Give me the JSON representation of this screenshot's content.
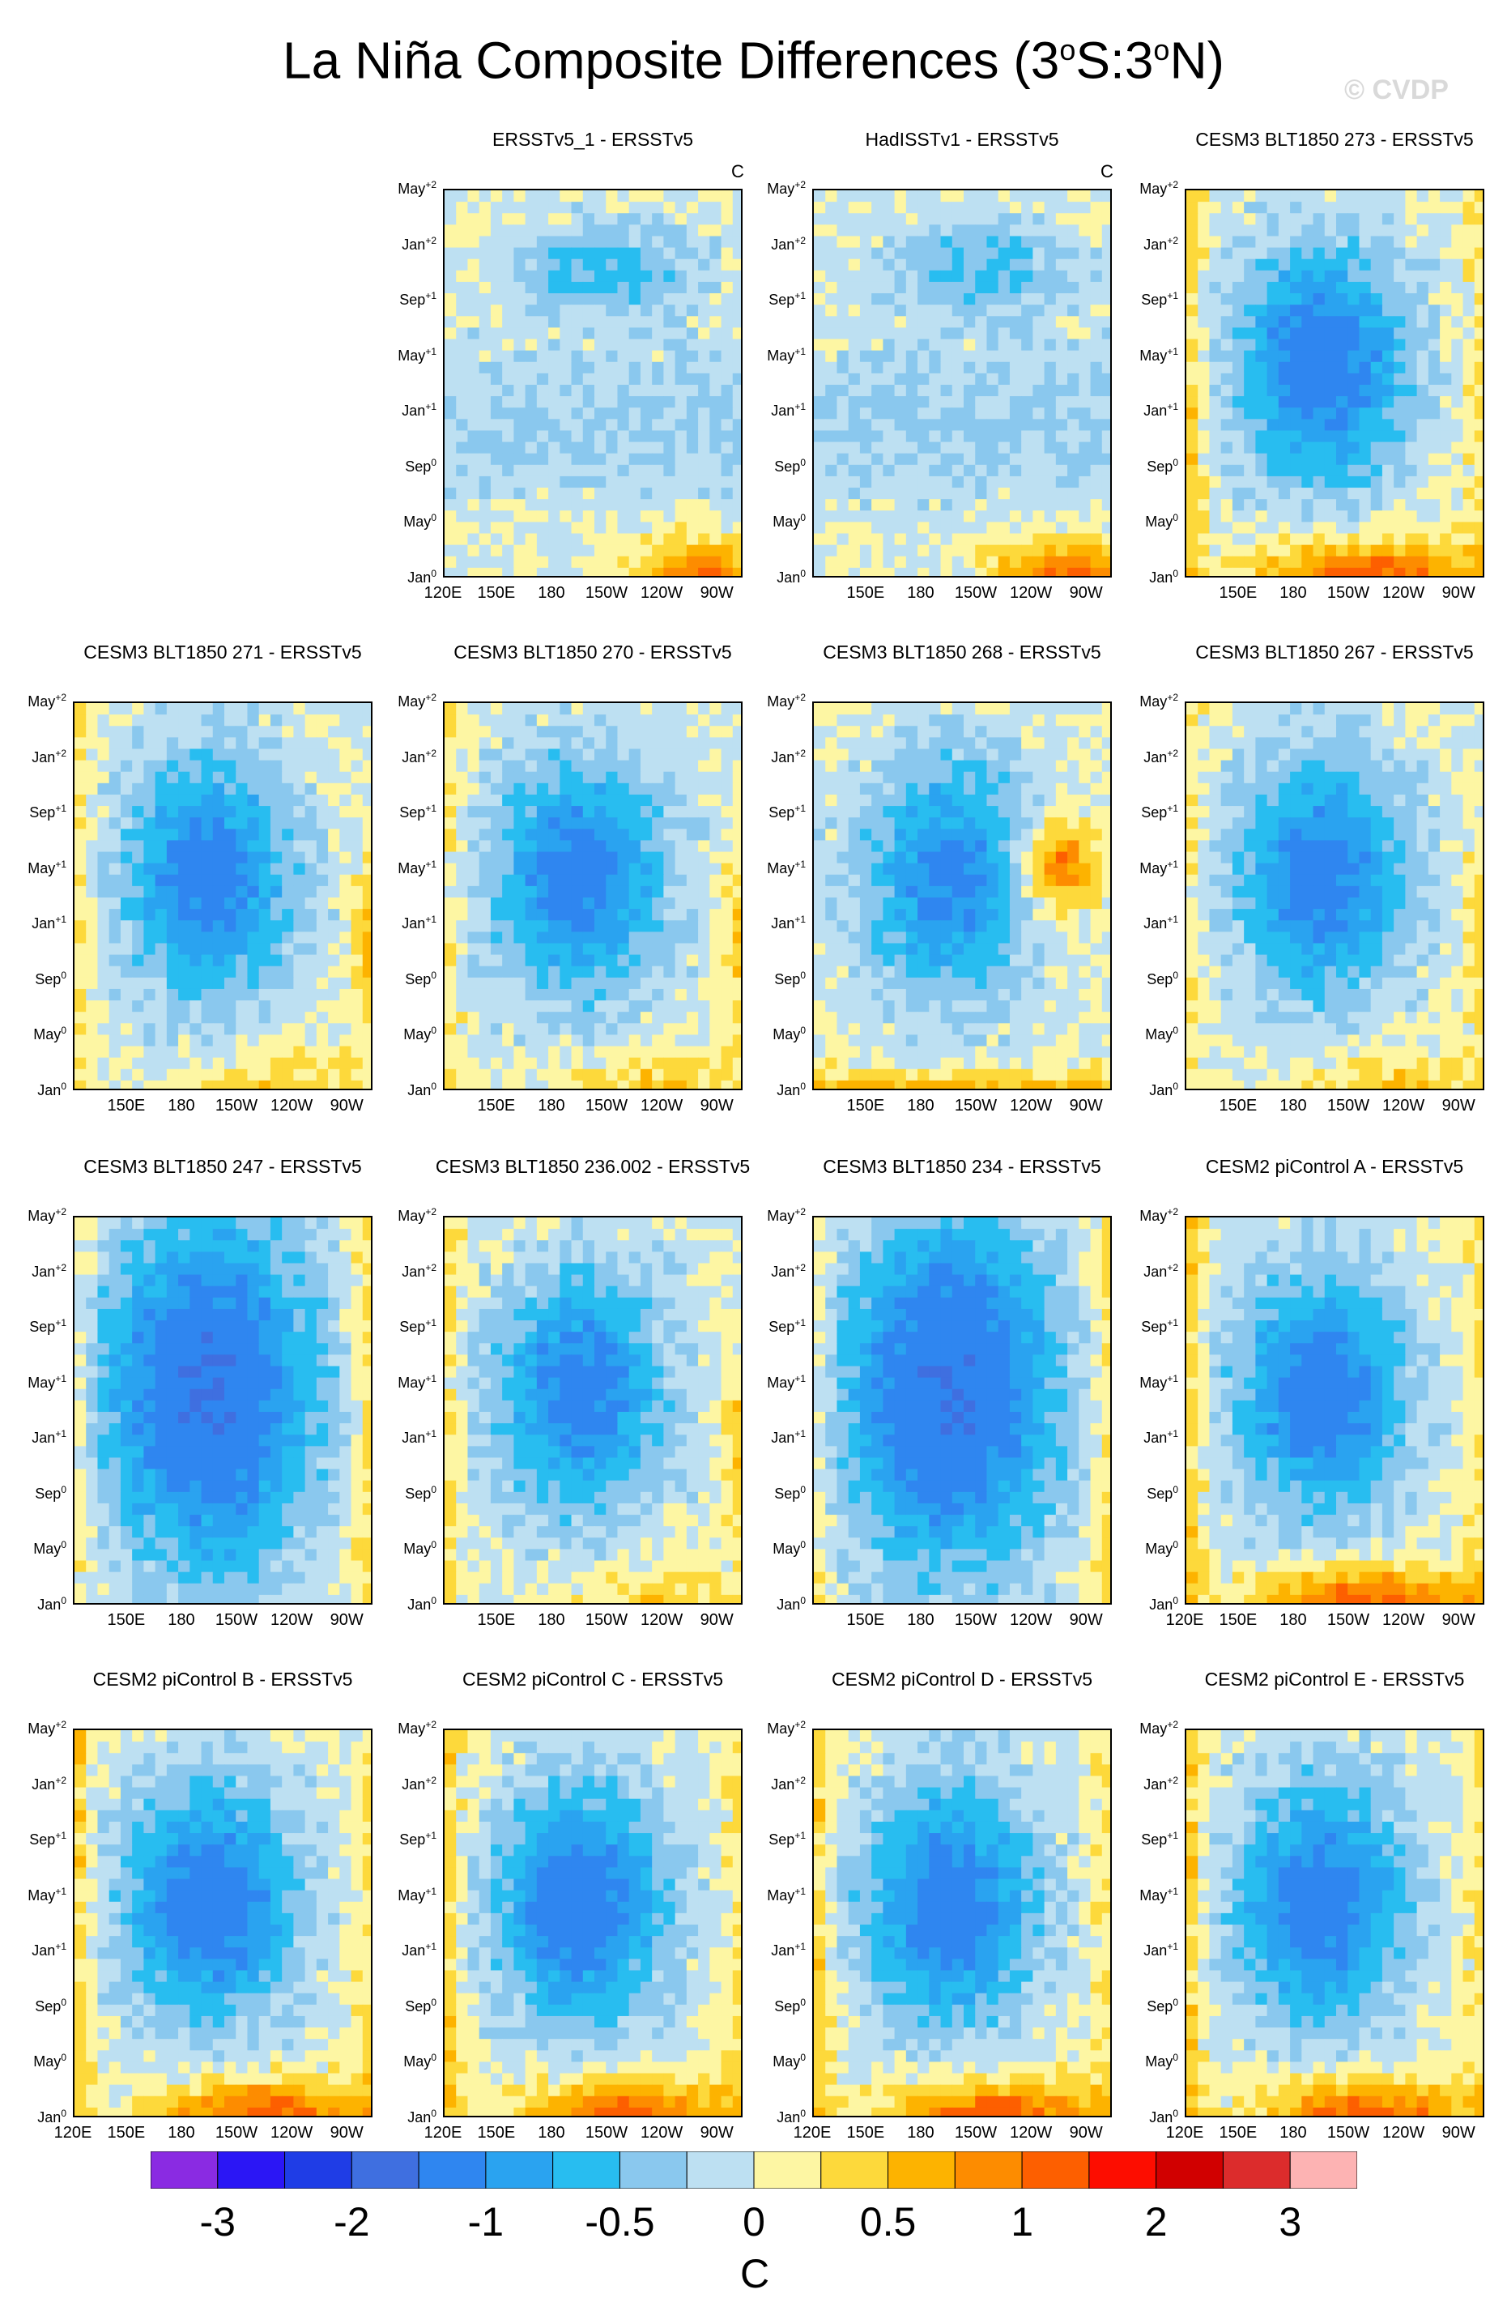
{
  "page": {
    "title_main": "La Niña Composite Differences (3",
    "title_deg": "o",
    "title_mid": "S:3",
    "title_deg2": "o",
    "title_end": "N)",
    "watermark": "© CVDP"
  },
  "chart_data": {
    "type": "heatmap",
    "y_tick_labels": [
      {
        "base": "Jan",
        "sup": "0"
      },
      {
        "base": "May",
        "sup": "0"
      },
      {
        "base": "Sep",
        "sup": "0"
      },
      {
        "base": "Jan",
        "sup": "+1"
      },
      {
        "base": "May",
        "sup": "+1"
      },
      {
        "base": "Sep",
        "sup": "+1"
      },
      {
        "base": "Jan",
        "sup": "+2"
      },
      {
        "base": "May",
        "sup": "+2"
      }
    ],
    "x_tick_labels_full": [
      "120E",
      "150E",
      "180",
      "150W",
      "120W",
      "90W"
    ],
    "x_tick_labels_short": [
      "150E",
      "180",
      "150W",
      "120W",
      "90W"
    ],
    "panels": [
      {
        "title": "ERSSTv5_1 - ERSSTv5",
        "unit": "C",
        "row": 0,
        "col": 1,
        "xfull": true,
        "seed": 3,
        "pattern": "weak"
      },
      {
        "title": "HadISSTv1 - ERSSTv5",
        "unit": "C",
        "row": 0,
        "col": 2,
        "xfull": false,
        "seed": 7,
        "pattern": "weak"
      },
      {
        "title": "CESM3 BLT1850 273 - ERSSTv5",
        "unit": "",
        "row": 0,
        "col": 3,
        "xfull": false,
        "seed": 11,
        "pattern": "strong"
      },
      {
        "title": "CESM3 BLT1850 271 - ERSSTv5",
        "unit": "",
        "row": 1,
        "col": 0,
        "xfull": false,
        "seed": 13,
        "pattern": "mid"
      },
      {
        "title": "CESM3 BLT1850 270 - ERSSTv5",
        "unit": "",
        "row": 1,
        "col": 1,
        "xfull": false,
        "seed": 17,
        "pattern": "mid"
      },
      {
        "title": "CESM3 BLT1850 268 - ERSSTv5",
        "unit": "",
        "row": 1,
        "col": 2,
        "xfull": false,
        "seed": 19,
        "pattern": "east"
      },
      {
        "title": "CESM3 BLT1850 267 - ERSSTv5",
        "unit": "",
        "row": 1,
        "col": 3,
        "xfull": false,
        "seed": 23,
        "pattern": "mid"
      },
      {
        "title": "CESM3 BLT1850 247 - ERSSTv5",
        "unit": "",
        "row": 2,
        "col": 0,
        "xfull": false,
        "seed": 29,
        "pattern": "cold"
      },
      {
        "title": "CESM3 BLT1850 236.002 - ERSSTv5",
        "unit": "",
        "row": 2,
        "col": 1,
        "xfull": false,
        "seed": 31,
        "pattern": "mid"
      },
      {
        "title": "CESM3 BLT1850 234 - ERSSTv5",
        "unit": "",
        "row": 2,
        "col": 2,
        "xfull": false,
        "seed": 37,
        "pattern": "cold"
      },
      {
        "title": "CESM2 piControl A - ERSSTv5",
        "unit": "",
        "row": 2,
        "col": 3,
        "xfull": true,
        "seed": 41,
        "pattern": "strong"
      },
      {
        "title": "CESM2 piControl B - ERSSTv5",
        "unit": "",
        "row": 3,
        "col": 0,
        "xfull": true,
        "seed": 43,
        "pattern": "strong"
      },
      {
        "title": "CESM2 piControl C - ERSSTv5",
        "unit": "",
        "row": 3,
        "col": 1,
        "xfull": true,
        "seed": 47,
        "pattern": "strong"
      },
      {
        "title": "CESM2 piControl D - ERSSTv5",
        "unit": "",
        "row": 3,
        "col": 2,
        "xfull": true,
        "seed": 53,
        "pattern": "strong"
      },
      {
        "title": "CESM2 piControl E - ERSSTv5",
        "unit": "",
        "row": 3,
        "col": 3,
        "xfull": true,
        "seed": 59,
        "pattern": "strong"
      }
    ],
    "colorbar": {
      "colors": [
        "#8a2be2",
        "#2b16f5",
        "#1f3de6",
        "#3f6fe0",
        "#2f86f0",
        "#2aa3f0",
        "#28bdf0",
        "#8ac8ee",
        "#bde0f2",
        "#fdf6a3",
        "#fdd93b",
        "#fdb300",
        "#fd8c00",
        "#fd5f00",
        "#fd0d00",
        "#d10000",
        "#dc2c2c",
        "#fdb3b3"
      ],
      "labels": [
        {
          "text": "-3",
          "index": 1
        },
        {
          "text": "-2",
          "index": 3
        },
        {
          "text": "-1",
          "index": 5
        },
        {
          "text": "-0.5",
          "index": 7
        },
        {
          "text": "0",
          "index": 9
        },
        {
          "text": "0.5",
          "index": 11
        },
        {
          "text": "1",
          "index": 13
        },
        {
          "text": "2",
          "index": 15
        },
        {
          "text": "3",
          "index": 17
        }
      ],
      "unit": "C"
    }
  }
}
